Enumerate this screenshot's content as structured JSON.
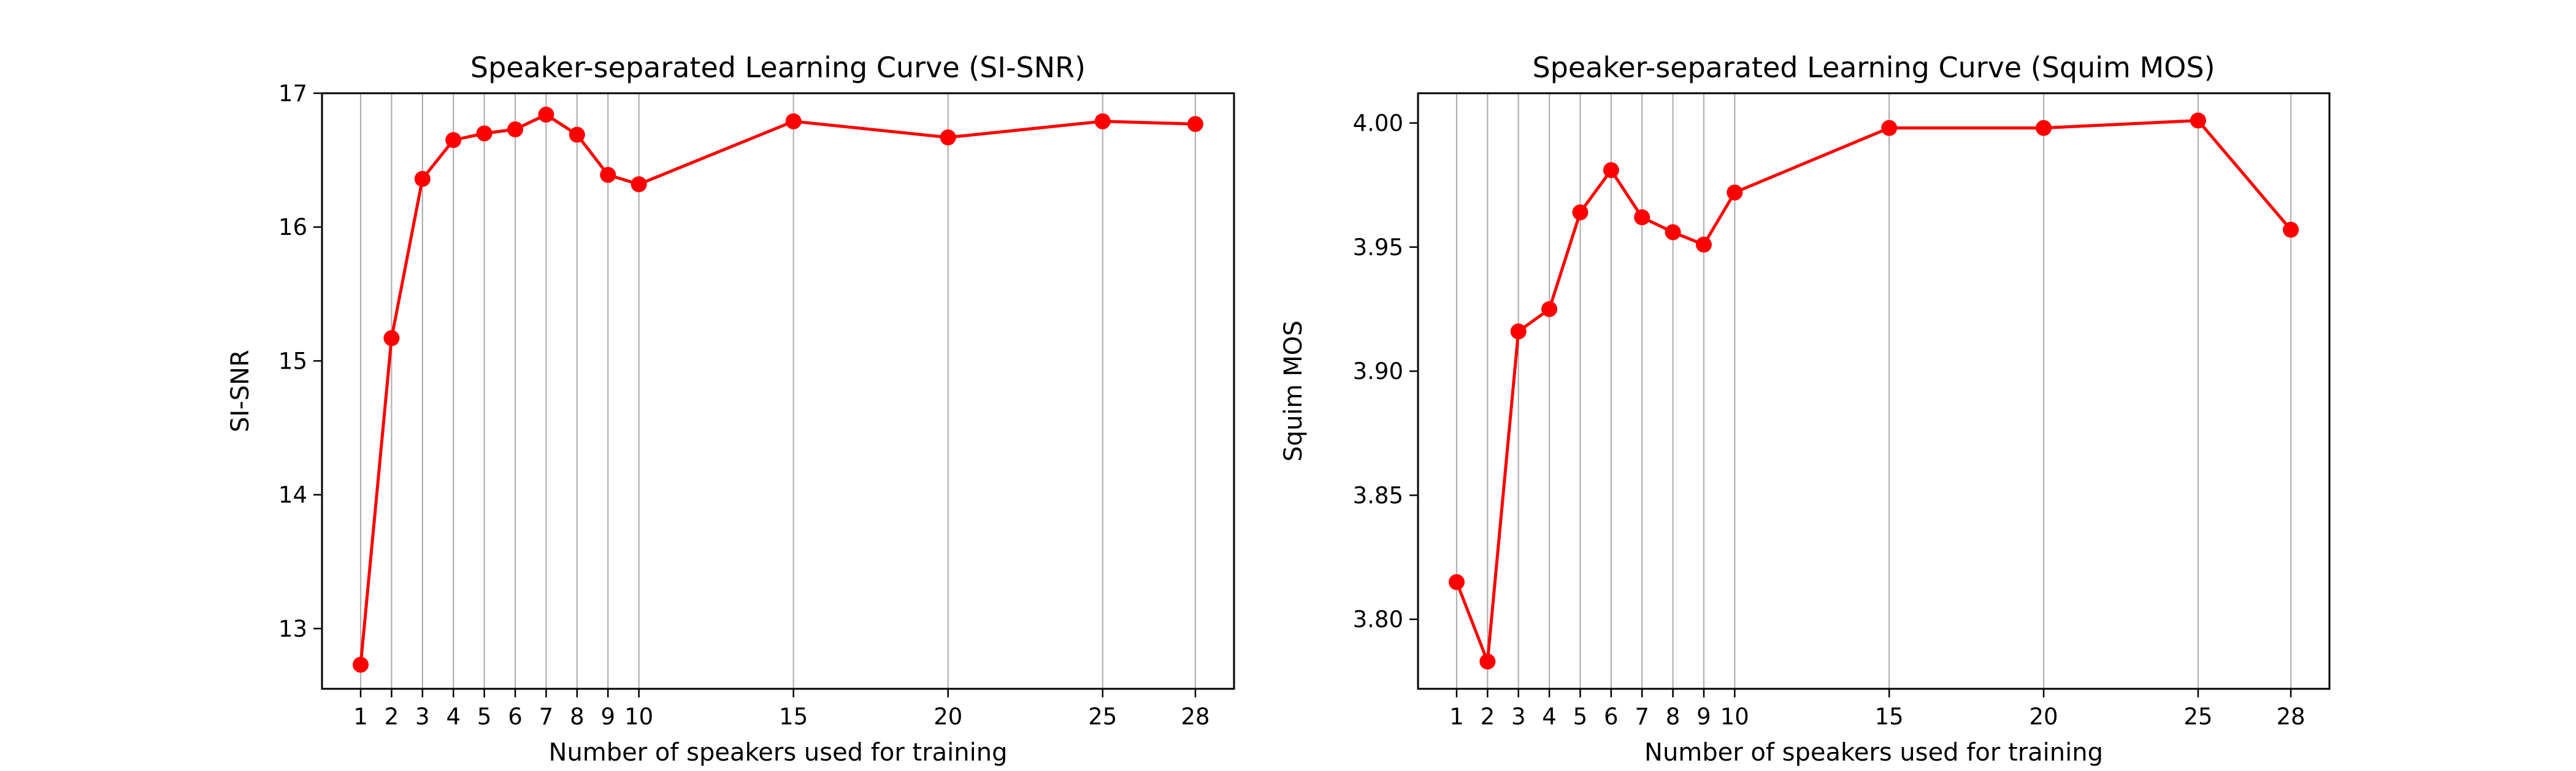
{
  "chart_data": [
    {
      "type": "line",
      "title": "Speaker-separated Learning Curve (SI-SNR)",
      "xlabel": "Number of speakers used for training",
      "ylabel": "SI-SNR",
      "x_ticks": [
        1,
        2,
        3,
        4,
        5,
        6,
        7,
        8,
        9,
        10,
        15,
        20,
        25,
        28
      ],
      "y_ticks": [
        13,
        14,
        15,
        16,
        17
      ],
      "xlim": [
        -0.25,
        29.25
      ],
      "ylim": [
        12.55,
        17.0
      ],
      "grid": "vertical",
      "line_color": "#ff0000",
      "series": [
        {
          "x": [
            1,
            2,
            3,
            4,
            5,
            6,
            7,
            8,
            9,
            10,
            15,
            20,
            25,
            28
          ],
          "values": [
            12.73,
            15.17,
            16.36,
            16.65,
            16.7,
            16.73,
            16.84,
            16.69,
            16.39,
            16.32,
            16.79,
            16.67,
            16.79,
            16.77
          ]
        }
      ]
    },
    {
      "type": "line",
      "title": "Speaker-separated Learning Curve (Squim MOS)",
      "xlabel": "Number of speakers used for training",
      "ylabel": "Squim MOS",
      "x_ticks": [
        1,
        2,
        3,
        4,
        5,
        6,
        7,
        8,
        9,
        10,
        15,
        20,
        25,
        28
      ],
      "y_ticks": [
        3.8,
        3.85,
        3.9,
        3.95,
        4.0
      ],
      "y_tick_labels": [
        "3.80",
        "3.85",
        "3.90",
        "3.95",
        "4.00"
      ],
      "xlim": [
        -0.25,
        29.25
      ],
      "ylim": [
        3.772,
        4.012
      ],
      "grid": "vertical",
      "line_color": "#ff0000",
      "series": [
        {
          "x": [
            1,
            2,
            3,
            4,
            5,
            6,
            7,
            8,
            9,
            10,
            15,
            20,
            25,
            28
          ],
          "values": [
            3.815,
            3.783,
            3.916,
            3.925,
            3.964,
            3.981,
            3.962,
            3.956,
            3.951,
            3.972,
            3.998,
            3.998,
            4.001,
            3.957
          ]
        }
      ]
    }
  ]
}
